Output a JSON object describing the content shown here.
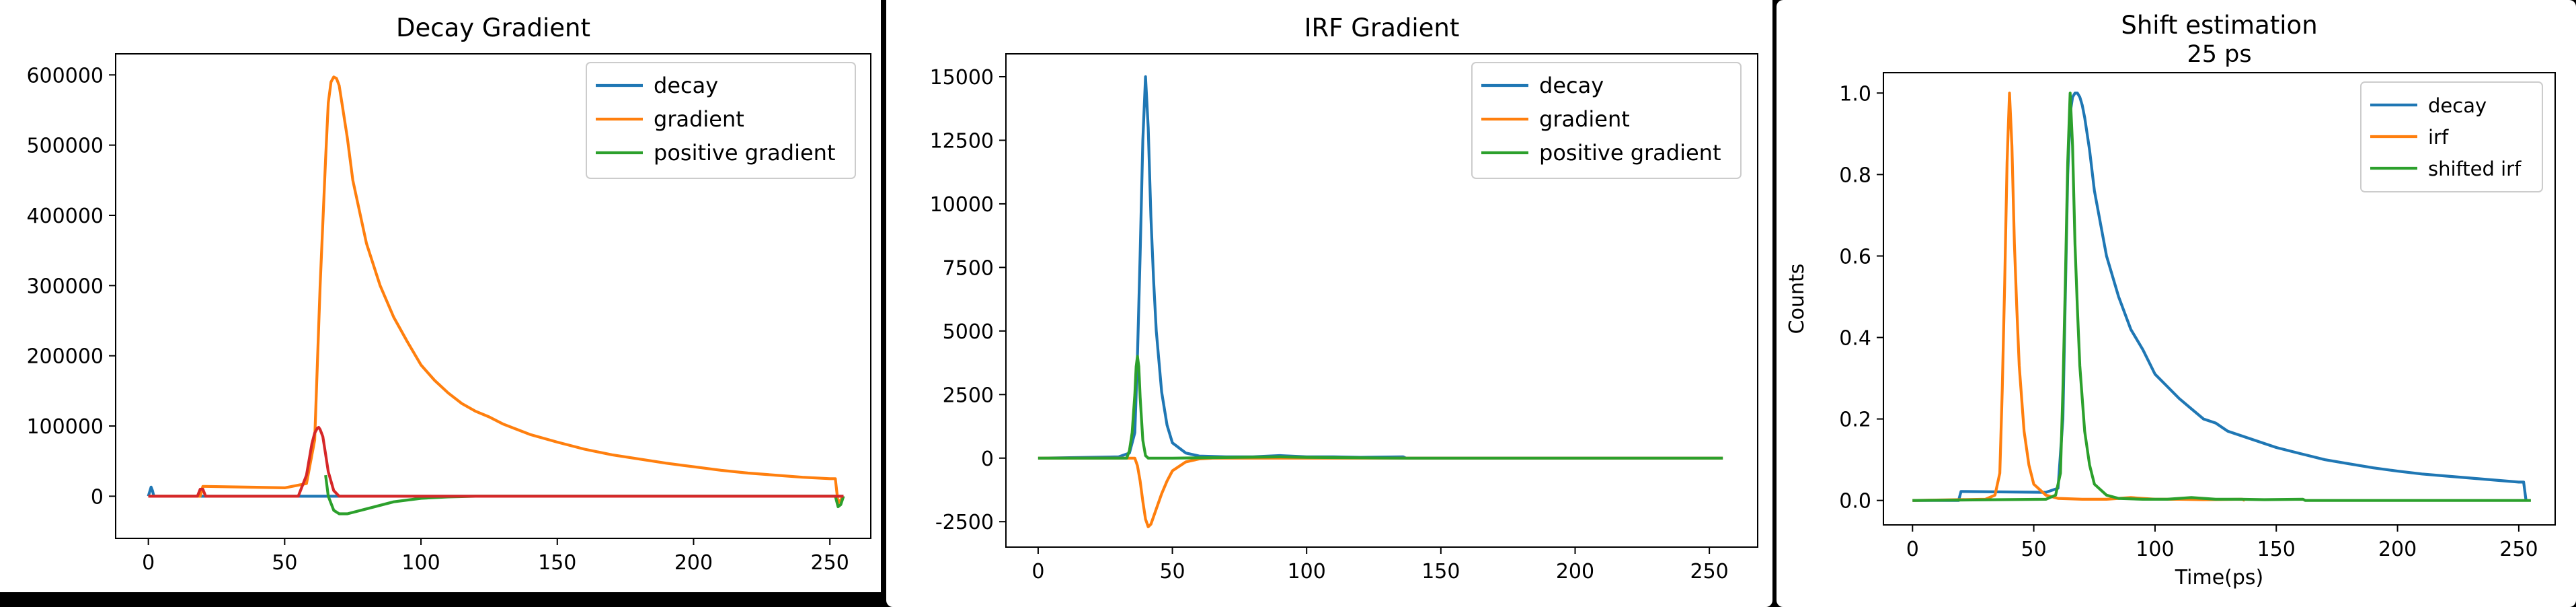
{
  "colors": {
    "blue": "#1f77b4",
    "orange": "#ff7f0e",
    "green": "#2ca02c",
    "red": "#d62728"
  },
  "chart_data": [
    {
      "type": "line",
      "title": "Decay Gradient",
      "xlabel": "",
      "ylabel": "",
      "xlim": [
        -12,
        265
      ],
      "ylim": [
        -60000,
        630000
      ],
      "xticks": [
        0,
        50,
        100,
        150,
        200,
        250
      ],
      "yticks": [
        0,
        100000,
        200000,
        300000,
        400000,
        500000,
        600000
      ],
      "grid": false,
      "legend_position": "top-right",
      "series": [
        {
          "name": "decay",
          "color": "#1f77b4",
          "legend": true,
          "x": [
            0,
            1,
            1.5,
            2,
            3,
            250,
            255
          ],
          "y": [
            0,
            13000,
            8000,
            0,
            0,
            0,
            0
          ]
        },
        {
          "name": "gradient",
          "color": "#ff7f0e",
          "legend": true,
          "x": [
            0,
            19,
            20,
            21,
            50,
            58,
            61,
            63,
            65,
            66,
            67,
            68,
            69,
            70,
            71,
            73,
            75,
            80,
            85,
            90,
            95,
            100,
            105,
            110,
            115,
            120,
            125,
            130,
            140,
            150,
            160,
            170,
            180,
            190,
            200,
            210,
            220,
            230,
            240,
            250,
            252,
            253,
            255
          ],
          "y": [
            0,
            0,
            14000,
            14000,
            12000,
            18000,
            80000,
            300000,
            480000,
            560000,
            590000,
            597000,
            595000,
            585000,
            560000,
            510000,
            450000,
            360000,
            300000,
            255000,
            220000,
            187000,
            165000,
            147000,
            132000,
            121000,
            113000,
            103000,
            88000,
            77000,
            67000,
            59000,
            53000,
            47000,
            42000,
            37000,
            33000,
            30000,
            27000,
            25000,
            25000,
            -10000,
            0
          ]
        },
        {
          "name": "positive gradient",
          "color": "#2ca02c",
          "legend": true,
          "x": [
            65,
            66,
            68,
            70,
            73,
            80,
            90,
            100,
            110,
            120,
            140,
            252,
            253,
            254,
            255
          ],
          "y": [
            30000,
            0,
            -20000,
            -25000,
            -25000,
            -18000,
            -8000,
            -3000,
            -1000,
            0,
            0,
            0,
            -15000,
            -12000,
            0
          ]
        },
        {
          "name": "",
          "color": "#d62728",
          "legend": false,
          "x": [
            0,
            18,
            19,
            20,
            21,
            55,
            58,
            60,
            61,
            62,
            62.5,
            63,
            64,
            65,
            66,
            68,
            70,
            255
          ],
          "y": [
            0,
            0,
            10000,
            10000,
            0,
            0,
            30000,
            75000,
            90000,
            97000,
            98000,
            95000,
            85000,
            60000,
            35000,
            8000,
            0,
            0
          ]
        }
      ]
    },
    {
      "type": "line",
      "title": "IRF Gradient",
      "xlabel": "",
      "ylabel": "",
      "xlim": [
        -12,
        268
      ],
      "ylim": [
        -3500,
        15900
      ],
      "xticks": [
        0,
        50,
        100,
        150,
        200,
        250
      ],
      "yticks": [
        -2500,
        0,
        2500,
        5000,
        7500,
        10000,
        12500,
        15000
      ],
      "grid": false,
      "legend_position": "top-right",
      "series": [
        {
          "name": "decay",
          "color": "#1f77b4",
          "legend": true,
          "x": [
            0,
            30,
            34,
            36,
            37,
            38,
            39,
            40,
            41,
            42,
            43,
            44,
            46,
            48,
            50,
            55,
            60,
            70,
            80,
            90,
            100,
            110,
            120,
            136,
            137,
            255
          ],
          "y": [
            0,
            50,
            200,
            1000,
            4000,
            8000,
            12500,
            15000,
            13000,
            9500,
            7000,
            5000,
            2600,
            1300,
            600,
            200,
            80,
            50,
            50,
            100,
            50,
            50,
            30,
            50,
            0,
            0
          ]
        },
        {
          "name": "gradient",
          "color": "#ff7f0e",
          "legend": true,
          "x": [
            0,
            34,
            36,
            37,
            38,
            39,
            40,
            41,
            42,
            43,
            44,
            46,
            48,
            50,
            55,
            60,
            65,
            255
          ],
          "y": [
            0,
            0,
            0,
            -300,
            -900,
            -1700,
            -2400,
            -2700,
            -2600,
            -2300,
            -2000,
            -1400,
            -900,
            -500,
            -150,
            -30,
            0,
            0
          ]
        },
        {
          "name": "positive gradient",
          "color": "#2ca02c",
          "legend": true,
          "x": [
            0,
            33,
            34,
            35,
            36,
            36.5,
            37,
            37.5,
            38,
            39,
            40,
            41,
            50,
            90,
            100,
            136,
            255
          ],
          "y": [
            0,
            0,
            300,
            1000,
            2500,
            3600,
            4000,
            3600,
            2400,
            700,
            100,
            0,
            0,
            50,
            30,
            0,
            0
          ]
        }
      ]
    },
    {
      "type": "line",
      "title": "Shift estimation",
      "subtitle": "25 ps",
      "xlabel": "Time(ps)",
      "ylabel": "Counts",
      "xlim": [
        -12,
        265
      ],
      "ylim": [
        -0.06,
        1.05
      ],
      "xticks": [
        0,
        50,
        100,
        150,
        200,
        250
      ],
      "yticks": [
        0.0,
        0.2,
        0.4,
        0.6,
        0.8,
        1.0
      ],
      "grid": false,
      "legend_position": "top-right",
      "series": [
        {
          "name": "decay",
          "color": "#1f77b4",
          "legend": true,
          "x": [
            0,
            19,
            20,
            21,
            55,
            60,
            62,
            63,
            64,
            65,
            66,
            67,
            68,
            69,
            70,
            71,
            73,
            75,
            80,
            85,
            90,
            95,
            100,
            105,
            110,
            115,
            120,
            125,
            130,
            140,
            150,
            160,
            170,
            180,
            190,
            200,
            210,
            220,
            230,
            240,
            250,
            252,
            253
          ],
          "y": [
            0,
            0,
            0.022,
            0.022,
            0.02,
            0.03,
            0.2,
            0.5,
            0.8,
            0.95,
            0.99,
            1.0,
            1.0,
            0.99,
            0.97,
            0.94,
            0.86,
            0.76,
            0.6,
            0.5,
            0.42,
            0.37,
            0.31,
            0.28,
            0.25,
            0.225,
            0.2,
            0.19,
            0.17,
            0.15,
            0.13,
            0.115,
            0.1,
            0.09,
            0.08,
            0.072,
            0.065,
            0.06,
            0.055,
            0.05,
            0.045,
            0.045,
            0
          ]
        },
        {
          "name": "irf",
          "color": "#ff7f0e",
          "legend": true,
          "x": [
            0,
            30,
            34,
            36,
            37,
            38,
            39,
            40,
            41,
            42,
            43,
            44,
            46,
            48,
            50,
            55,
            60,
            70,
            80,
            90,
            100,
            110,
            120,
            136,
            137
          ],
          "y": [
            0,
            0.003,
            0.013,
            0.067,
            0.27,
            0.53,
            0.83,
            1.0,
            0.87,
            0.63,
            0.47,
            0.33,
            0.17,
            0.087,
            0.04,
            0.013,
            0.005,
            0.003,
            0.003,
            0.007,
            0.003,
            0.003,
            0.002,
            0.003,
            0
          ]
        },
        {
          "name": "shifted irf",
          "color": "#2ca02c",
          "legend": true,
          "x": [
            0,
            55,
            59,
            61,
            62,
            63,
            64,
            65,
            66,
            67,
            68,
            69,
            71,
            73,
            75,
            80,
            85,
            95,
            105,
            115,
            125,
            135,
            145,
            161,
            162,
            255
          ],
          "y": [
            0,
            0.003,
            0.013,
            0.067,
            0.27,
            0.53,
            0.83,
            1.0,
            0.87,
            0.63,
            0.47,
            0.33,
            0.17,
            0.087,
            0.04,
            0.013,
            0.005,
            0.003,
            0.003,
            0.007,
            0.003,
            0.003,
            0.002,
            0.003,
            0,
            0
          ]
        }
      ]
    }
  ]
}
